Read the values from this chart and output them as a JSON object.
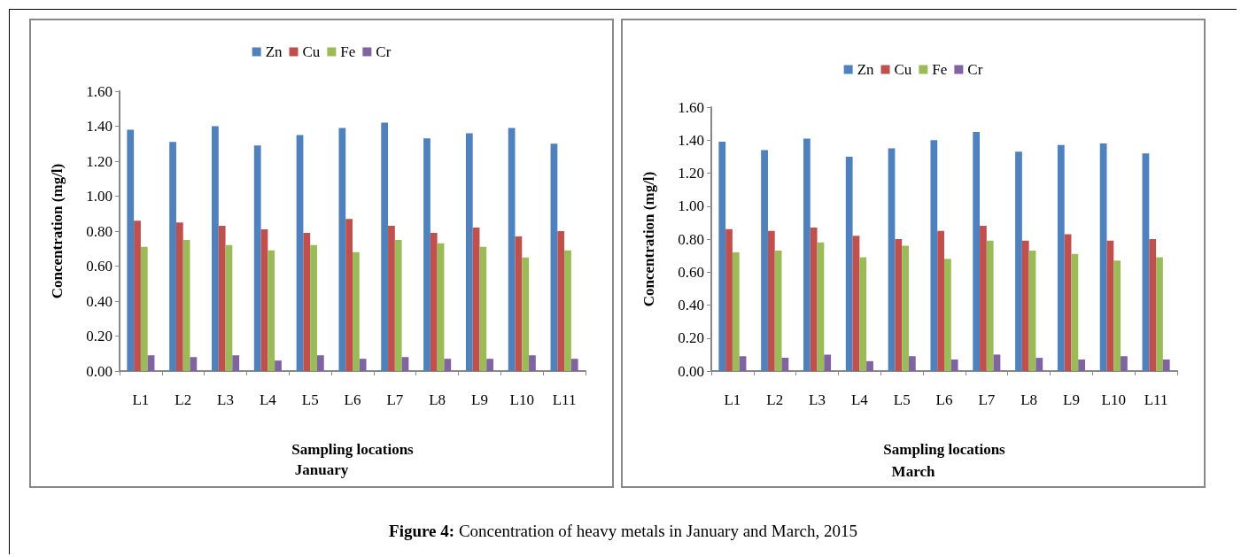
{
  "chart_data": [
    {
      "type": "bar",
      "subtitle": "January",
      "xlabel": "Sampling locations",
      "ylabel": "Concentration (mg/l)",
      "categories": [
        "L1",
        "L2",
        "L3",
        "L4",
        "L5",
        "L6",
        "L7",
        "L8",
        "L9",
        "L10",
        "L11"
      ],
      "series": [
        {
          "name": "Zn",
          "color": "#4f81bd",
          "values": [
            1.38,
            1.31,
            1.4,
            1.29,
            1.35,
            1.39,
            1.42,
            1.33,
            1.36,
            1.39,
            1.3
          ]
        },
        {
          "name": "Cu",
          "color": "#c0504d",
          "values": [
            0.86,
            0.85,
            0.83,
            0.81,
            0.79,
            0.87,
            0.83,
            0.79,
            0.82,
            0.77,
            0.8
          ]
        },
        {
          "name": "Fe",
          "color": "#9bbb59",
          "values": [
            0.71,
            0.75,
            0.72,
            0.69,
            0.72,
            0.68,
            0.75,
            0.73,
            0.71,
            0.65,
            0.69
          ]
        },
        {
          "name": "Cr",
          "color": "#8064a2",
          "values": [
            0.09,
            0.08,
            0.09,
            0.06,
            0.09,
            0.07,
            0.08,
            0.07,
            0.07,
            0.09,
            0.07
          ]
        }
      ],
      "ylim": [
        0,
        1.6
      ],
      "yticks": [
        {
          "value": 0,
          "label": "0.00"
        },
        {
          "value": 0.2,
          "label": "0.20"
        },
        {
          "value": 0.4,
          "label": "0.40"
        },
        {
          "value": 0.6,
          "label": "0.60"
        },
        {
          "value": 0.8,
          "label": "0.80"
        },
        {
          "value": 1.0,
          "label": "1.00"
        },
        {
          "value": 1.2,
          "label": "1.20"
        },
        {
          "value": 1.4,
          "label": "1.40"
        },
        {
          "value": 1.6,
          "label": "1.60"
        }
      ],
      "grid": false,
      "legend": "top",
      "annotations": [
        "Figure 4: Concentration of heavy metals in January and March, 2015"
      ]
    },
    {
      "type": "bar",
      "subtitle": "March",
      "xlabel": "Sampling locations",
      "ylabel": "Concentration (mg/l)",
      "categories": [
        "L1",
        "L2",
        "L3",
        "L4",
        "L5",
        "L6",
        "L7",
        "L8",
        "L9",
        "L10",
        "L11"
      ],
      "series": [
        {
          "name": "Zn",
          "color": "#4f81bd",
          "values": [
            1.39,
            1.34,
            1.41,
            1.3,
            1.35,
            1.4,
            1.45,
            1.33,
            1.37,
            1.38,
            1.32
          ]
        },
        {
          "name": "Cu",
          "color": "#c0504d",
          "values": [
            0.86,
            0.85,
            0.87,
            0.82,
            0.8,
            0.85,
            0.88,
            0.79,
            0.83,
            0.79,
            0.8
          ]
        },
        {
          "name": "Fe",
          "color": "#9bbb59",
          "values": [
            0.72,
            0.73,
            0.78,
            0.69,
            0.76,
            0.68,
            0.79,
            0.73,
            0.71,
            0.67,
            0.69
          ]
        },
        {
          "name": "Cr",
          "color": "#8064a2",
          "values": [
            0.09,
            0.08,
            0.1,
            0.06,
            0.09,
            0.07,
            0.1,
            0.08,
            0.07,
            0.09,
            0.07
          ]
        }
      ],
      "ylim": [
        0,
        1.6
      ],
      "yticks": [
        {
          "value": 0,
          "label": "0.00"
        },
        {
          "value": 0.2,
          "label": "0.20"
        },
        {
          "value": 0.4,
          "label": "0.40"
        },
        {
          "value": 0.6,
          "label": "0.60"
        },
        {
          "value": 0.8,
          "label": "0.80"
        },
        {
          "value": 1.0,
          "label": "1.00"
        },
        {
          "value": 1.2,
          "label": "1.20"
        },
        {
          "value": 1.4,
          "label": "1.40"
        },
        {
          "value": 1.6,
          "label": "1.60"
        }
      ],
      "grid": false,
      "legend": "top"
    }
  ]
}
